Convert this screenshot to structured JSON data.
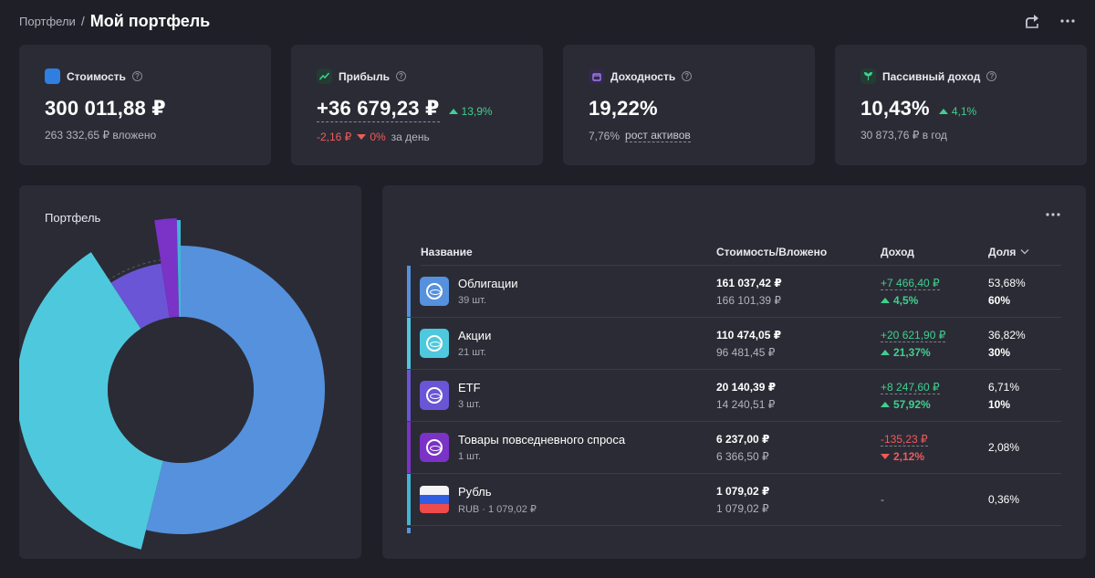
{
  "header": {
    "breadcrumb": "Портфели",
    "separator": "/",
    "title": "Мой портфель"
  },
  "stats": {
    "value": {
      "label": "Стоимость",
      "help": "?",
      "amount": "300 011,88 ₽",
      "sub": "263 332,65 ₽ вложено",
      "color": "#2f7fe0"
    },
    "profit": {
      "label": "Прибыль",
      "help": "?",
      "amount": "+36 679,23 ₽",
      "change": "13,9%",
      "day_abs": "-2,16 ₽",
      "day_pct": "0%",
      "day_label": "за день",
      "color": "#3fd08f"
    },
    "yield": {
      "label": "Доходность",
      "help": "?",
      "amount": "19,22%",
      "sub_value": "7,76%",
      "sub_label": "рост активов",
      "color": "#8b5cf6"
    },
    "passive": {
      "label": "Пассивный доход",
      "help": "?",
      "amount": "10,43%",
      "change": "4,1%",
      "sub": "30 873,76 ₽ в год",
      "color": "#3fd08f"
    }
  },
  "chart_data": {
    "type": "pie",
    "title": "Портфель",
    "categories": [
      "Облигации",
      "Акции",
      "ETF",
      "Товары повседневного спроса",
      "Рубль"
    ],
    "values": [
      53.68,
      36.82,
      6.71,
      2.08,
      0.36
    ],
    "colors": [
      "#5591dd",
      "#4ec8dc",
      "#6a55d6",
      "#7b32c7",
      "#3fb6d6"
    ]
  },
  "table": {
    "columns": {
      "name": "Название",
      "value": "Стоимость/Вложено",
      "income": "Доход",
      "share": "Доля"
    },
    "rows": [
      {
        "name": "Облигации",
        "sub": "39 шт.",
        "value": "161 037,42 ₽",
        "invested": "166 101,39 ₽",
        "income_abs": "+7 466,40 ₽",
        "income_pct": "4,5%",
        "direction": "up",
        "share": "53,68%",
        "share_sub": "60%",
        "color": "#5591dd",
        "icon": "bond-icon"
      },
      {
        "name": "Акции",
        "sub": "21 шт.",
        "value": "110 474,05 ₽",
        "invested": "96 481,45 ₽",
        "income_abs": "+20 621,90 ₽",
        "income_pct": "21,37%",
        "direction": "up",
        "share": "36,82%",
        "share_sub": "30%",
        "color": "#4ec8dc",
        "icon": "stock-icon"
      },
      {
        "name": "ETF",
        "sub": "3 шт.",
        "value": "20 140,39 ₽",
        "invested": "14 240,51 ₽",
        "income_abs": "+8 247,60 ₽",
        "income_pct": "57,92%",
        "direction": "up",
        "share": "6,71%",
        "share_sub": "10%",
        "color": "#6a55d6",
        "icon": "etf-icon"
      },
      {
        "name": "Товары повседневного спроса",
        "sub": "1 шт.",
        "value": "6 237,00 ₽",
        "invested": "6 366,50 ₽",
        "income_abs": "-135,23 ₽",
        "income_pct": "2,12%",
        "direction": "down",
        "share": "2,08%",
        "share_sub": "",
        "color": "#7b32c7",
        "icon": "consumer-goods-icon"
      },
      {
        "name": "Рубль",
        "sub": "RUB · 1 079,02 ₽",
        "value": "1 079,02 ₽",
        "invested": "1 079,02 ₽",
        "income_abs": "-",
        "income_pct": "",
        "direction": "none",
        "share": "0,36%",
        "share_sub": "",
        "color": "#3fb6d6",
        "icon": "russia-flag-icon"
      }
    ]
  }
}
